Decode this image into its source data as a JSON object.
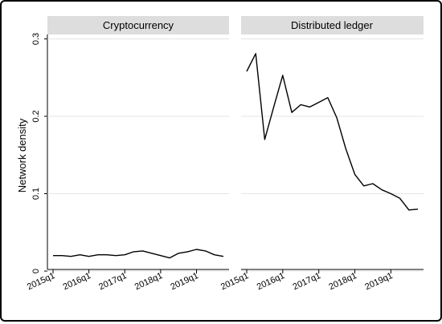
{
  "chart_data": {
    "type": "line",
    "ylabel": "Network density",
    "ylim": [
      0,
      0.3
    ],
    "yticks": [
      0,
      0.1,
      0.2,
      0.3
    ],
    "ytick_labels": [
      "0",
      "0.1",
      "0.2",
      "0.3"
    ],
    "xticks": [
      "2015q1",
      "2016q1",
      "2017q1",
      "2018q1",
      "2019q1"
    ],
    "xlim": [
      "2015q1",
      "2019q4"
    ],
    "grid": "horizontal",
    "panels": [
      {
        "title": "Cryptocurrency",
        "x": [
          "2015q1",
          "2015q2",
          "2015q3",
          "2015q4",
          "2016q1",
          "2016q2",
          "2016q3",
          "2016q4",
          "2017q1",
          "2017q2",
          "2017q3",
          "2017q4",
          "2018q1",
          "2018q2",
          "2018q3",
          "2018q4",
          "2019q1",
          "2019q2",
          "2019q3",
          "2019q4"
        ],
        "values": [
          0.02,
          0.02,
          0.019,
          0.021,
          0.019,
          0.021,
          0.021,
          0.02,
          0.021,
          0.025,
          0.026,
          0.023,
          0.02,
          0.017,
          0.023,
          0.025,
          0.028,
          0.026,
          0.021,
          0.019
        ]
      },
      {
        "title": "Distributed ledger",
        "x": [
          "2015q1",
          "2015q2",
          "2015q3",
          "2015q4",
          "2016q1",
          "2016q2",
          "2016q3",
          "2016q4",
          "2017q1",
          "2017q2",
          "2017q3",
          "2017q4",
          "2018q1",
          "2018q2",
          "2018q3",
          "2018q4",
          "2019q1",
          "2019q2",
          "2019q3",
          "2019q4"
        ],
        "values": [
          0.258,
          0.281,
          0.17,
          0.212,
          0.253,
          0.205,
          0.215,
          0.212,
          0.218,
          0.224,
          0.198,
          0.158,
          0.125,
          0.11,
          0.113,
          0.105,
          0.1,
          0.094,
          0.079,
          0.08
        ]
      }
    ]
  }
}
